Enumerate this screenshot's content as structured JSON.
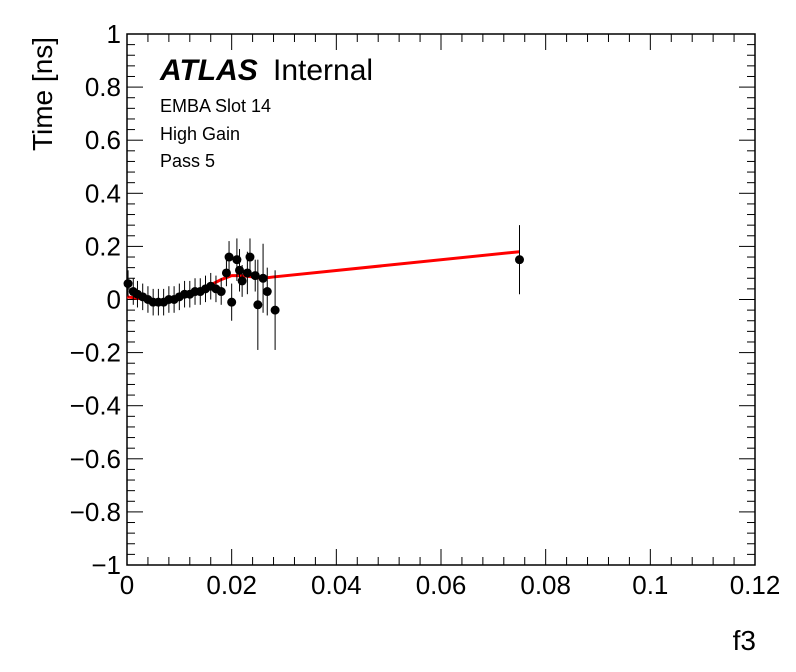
{
  "chart_data": {
    "type": "scatter",
    "title": "",
    "xlabel": "f3",
    "ylabel": "Time [ns]",
    "xlim": [
      0,
      0.12
    ],
    "ylim": [
      -1,
      1
    ],
    "x_ticks": [
      0,
      0.02,
      0.04,
      0.06,
      0.08,
      0.1,
      0.12
    ],
    "x_tick_labels": [
      "0",
      "0.02",
      "0.04",
      "0.06",
      "0.08",
      "0.1",
      "0.12"
    ],
    "y_ticks": [
      -1,
      -0.8,
      -0.6,
      -0.4,
      -0.2,
      0,
      0.2,
      0.4,
      0.6,
      0.8,
      1
    ],
    "y_tick_labels": [
      "−1",
      "−0.8",
      "−0.6",
      "−0.4",
      "−0.2",
      "0",
      "0.2",
      "0.4",
      "0.6",
      "0.8",
      "1"
    ],
    "grid": false,
    "legend": null,
    "annotations": {
      "atlas": "ATLAS",
      "status": "Internal",
      "line1": "EMBA Slot 14",
      "line2": "High Gain",
      "line3": "Pass 5"
    },
    "series": [
      {
        "kind": "points_with_errors",
        "color": "#000000",
        "x": [
          0.0002,
          0.0012,
          0.002,
          0.003,
          0.004,
          0.005,
          0.006,
          0.007,
          0.008,
          0.009,
          0.01,
          0.011,
          0.012,
          0.013,
          0.014,
          0.015,
          0.016,
          0.017,
          0.018,
          0.019,
          0.0195,
          0.02,
          0.021,
          0.0215,
          0.022,
          0.023,
          0.0235,
          0.0245,
          0.025,
          0.026,
          0.0268,
          0.0283,
          0.075
        ],
        "y": [
          0.06,
          0.03,
          0.02,
          0.01,
          0.0,
          -0.01,
          -0.01,
          -0.01,
          0.0,
          0.0,
          0.01,
          0.02,
          0.02,
          0.03,
          0.03,
          0.04,
          0.05,
          0.04,
          0.03,
          0.1,
          0.16,
          -0.01,
          0.15,
          0.11,
          0.07,
          0.1,
          0.16,
          0.09,
          -0.02,
          0.08,
          0.03,
          -0.04,
          0.15
        ],
        "yerr": [
          0.05,
          0.05,
          0.05,
          0.05,
          0.05,
          0.05,
          0.05,
          0.05,
          0.05,
          0.05,
          0.05,
          0.05,
          0.05,
          0.05,
          0.05,
          0.05,
          0.05,
          0.05,
          0.05,
          0.05,
          0.06,
          0.07,
          0.08,
          0.08,
          0.06,
          0.08,
          0.07,
          0.06,
          0.17,
          0.13,
          0.09,
          0.15,
          0.13
        ]
      },
      {
        "kind": "fit_line",
        "color": "#ff0000",
        "x": [
          0,
          0.002,
          0.004,
          0.006,
          0.008,
          0.01,
          0.012,
          0.014,
          0.016,
          0.018,
          0.02,
          0.022,
          0.024,
          0.026,
          0.028,
          0.075
        ],
        "y": [
          0.01,
          0.005,
          -0.002,
          -0.01,
          -0.008,
          0.005,
          0.02,
          0.035,
          0.055,
          0.075,
          0.09,
          0.09,
          0.085,
          0.08,
          0.085,
          0.18
        ]
      }
    ]
  }
}
